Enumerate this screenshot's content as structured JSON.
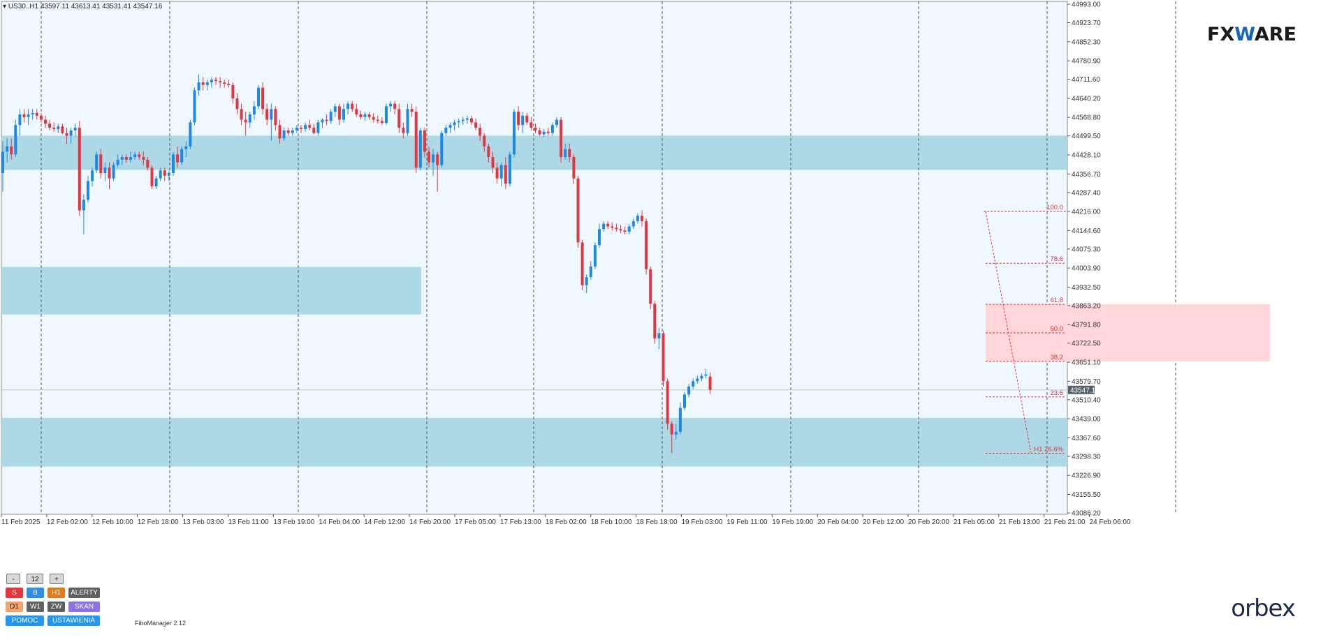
{
  "symbol_bar": {
    "text": "US30..H1  43597.11 43613.41 43531.41 43547.16"
  },
  "logos": {
    "fxmware_prefix": "FX",
    "fxmware_w": "W",
    "fxmware_suffix": "ARE",
    "orbex": "orbex"
  },
  "indicator_label": "FiboManager 2.12",
  "panel": {
    "minus": "-",
    "count": "12",
    "plus": "+",
    "row1": [
      "S",
      "B",
      "H1",
      "ALERTY"
    ],
    "row2": [
      "D1",
      "W1",
      "ZW",
      "SKAN"
    ],
    "row3": [
      "POMOC",
      "USTAWIENIA"
    ]
  },
  "colors": {
    "background": "#f0f8ff",
    "bull": "#1e88e5",
    "bear": "#e8343e",
    "zone": "#add8e6",
    "fib_zone": "#ffd6da",
    "fib_line": "#e8343e",
    "grid": "#555555"
  },
  "chart_data": {
    "type": "candlestick",
    "symbol": "US30",
    "timeframe": "H1",
    "ohlc_last": {
      "open": 43597.11,
      "high": 43613.41,
      "low": 43531.41,
      "close": 43547.16
    },
    "current_price": "43547.16",
    "y_ticks": [
      "44993.00",
      "44923.70",
      "44852.30",
      "44780.90",
      "44711.60",
      "44640.20",
      "44568.80",
      "44499.50",
      "44428.10",
      "44356.70",
      "44287.40",
      "44216.00",
      "44144.60",
      "44075.30",
      "44003.90",
      "43932.50",
      "43863.20",
      "43791.80",
      "43722.50",
      "43651.10",
      "43579.70",
      "43510.40",
      "43439.00",
      "43367.60",
      "43298.30",
      "43226.90",
      "43155.50",
      "43086.20"
    ],
    "y_range": [
      43086.2,
      44993.0
    ],
    "x_ticks": [
      "11 Feb 2025",
      "12 Feb 02:00",
      "12 Feb 10:00",
      "12 Feb 18:00",
      "13 Feb 03:00",
      "13 Feb 11:00",
      "13 Feb 19:00",
      "14 Feb 04:00",
      "14 Feb 12:00",
      "14 Feb 20:00",
      "17 Feb 05:00",
      "17 Feb 13:00",
      "18 Feb 02:00",
      "18 Feb 10:00",
      "18 Feb 18:00",
      "19 Feb 03:00",
      "19 Feb 11:00",
      "19 Feb 19:00",
      "20 Feb 04:00",
      "20 Feb 12:00",
      "20 Feb 20:00",
      "21 Feb 05:00",
      "21 Feb 13:00",
      "21 Feb 21:00",
      "24 Feb 06:00"
    ],
    "fib_levels": [
      {
        "label": "100.0",
        "price": 44216.0
      },
      {
        "label": "78.6",
        "price": 44022.0
      },
      {
        "label": "61.8",
        "price": 43868.0
      },
      {
        "label": "50.0",
        "price": 43761.0
      },
      {
        "label": "38.2",
        "price": 43654.0
      },
      {
        "label": "23.6",
        "price": 43521.0
      },
      {
        "label": "H1 26.6%",
        "price": 43310.0
      }
    ],
    "zones": [
      {
        "from_price": 44372,
        "to_price": 44500,
        "span": "full"
      },
      {
        "from_price": 43830,
        "to_price": 44008,
        "span": "left"
      },
      {
        "from_price": 43260,
        "to_price": 43442,
        "span": "full"
      }
    ],
    "candles": [
      {
        "o": 44360,
        "h": 44480,
        "l": 44290,
        "c": 44440
      },
      {
        "o": 44440,
        "h": 44490,
        "l": 44400,
        "c": 44460
      },
      {
        "o": 44460,
        "h": 44490,
        "l": 44410,
        "c": 44430
      },
      {
        "o": 44430,
        "h": 44560,
        "l": 44420,
        "c": 44540
      },
      {
        "o": 44540,
        "h": 44600,
        "l": 44500,
        "c": 44580
      },
      {
        "o": 44580,
        "h": 44600,
        "l": 44550,
        "c": 44570
      },
      {
        "o": 44570,
        "h": 44600,
        "l": 44540,
        "c": 44580
      },
      {
        "o": 44580,
        "h": 44600,
        "l": 44560,
        "c": 44585
      },
      {
        "o": 44585,
        "h": 44600,
        "l": 44560,
        "c": 44575
      },
      {
        "o": 44575,
        "h": 44585,
        "l": 44550,
        "c": 44560
      },
      {
        "o": 44560,
        "h": 44575,
        "l": 44530,
        "c": 44545
      },
      {
        "o": 44545,
        "h": 44560,
        "l": 44520,
        "c": 44530
      },
      {
        "o": 44530,
        "h": 44550,
        "l": 44515,
        "c": 44525
      },
      {
        "o": 44525,
        "h": 44545,
        "l": 44510,
        "c": 44535
      },
      {
        "o": 44535,
        "h": 44545,
        "l": 44505,
        "c": 44510
      },
      {
        "o": 44510,
        "h": 44530,
        "l": 44470,
        "c": 44500
      },
      {
        "o": 44500,
        "h": 44530,
        "l": 44470,
        "c": 44520
      },
      {
        "o": 44520,
        "h": 44545,
        "l": 44495,
        "c": 44530
      },
      {
        "o": 44530,
        "h": 44555,
        "l": 44200,
        "c": 44220
      },
      {
        "o": 44220,
        "h": 44280,
        "l": 44130,
        "c": 44260
      },
      {
        "o": 44260,
        "h": 44350,
        "l": 44250,
        "c": 44330
      },
      {
        "o": 44330,
        "h": 44380,
        "l": 44310,
        "c": 44370
      },
      {
        "o": 44370,
        "h": 44440,
        "l": 44360,
        "c": 44430
      },
      {
        "o": 44430,
        "h": 44450,
        "l": 44340,
        "c": 44360
      },
      {
        "o": 44360,
        "h": 44400,
        "l": 44330,
        "c": 44380
      },
      {
        "o": 44380,
        "h": 44400,
        "l": 44300,
        "c": 44340
      },
      {
        "o": 44340,
        "h": 44400,
        "l": 44330,
        "c": 44390
      },
      {
        "o": 44390,
        "h": 44430,
        "l": 44380,
        "c": 44410
      },
      {
        "o": 44410,
        "h": 44430,
        "l": 44390,
        "c": 44420
      },
      {
        "o": 44420,
        "h": 44430,
        "l": 44400,
        "c": 44410
      },
      {
        "o": 44410,
        "h": 44440,
        "l": 44400,
        "c": 44420
      },
      {
        "o": 44420,
        "h": 44440,
        "l": 44410,
        "c": 44430
      },
      {
        "o": 44430,
        "h": 44440,
        "l": 44410,
        "c": 44420
      },
      {
        "o": 44420,
        "h": 44440,
        "l": 44390,
        "c": 44410
      },
      {
        "o": 44410,
        "h": 44420,
        "l": 44370,
        "c": 44380
      },
      {
        "o": 44380,
        "h": 44390,
        "l": 44300,
        "c": 44310
      },
      {
        "o": 44310,
        "h": 44350,
        "l": 44300,
        "c": 44340
      },
      {
        "o": 44340,
        "h": 44380,
        "l": 44330,
        "c": 44370
      },
      {
        "o": 44370,
        "h": 44380,
        "l": 44330,
        "c": 44350
      },
      {
        "o": 44350,
        "h": 44370,
        "l": 44330,
        "c": 44360
      },
      {
        "o": 44360,
        "h": 44440,
        "l": 44350,
        "c": 44430
      },
      {
        "o": 44430,
        "h": 44460,
        "l": 44380,
        "c": 44400
      },
      {
        "o": 44400,
        "h": 44460,
        "l": 44390,
        "c": 44450
      },
      {
        "o": 44450,
        "h": 44480,
        "l": 44420,
        "c": 44460
      },
      {
        "o": 44460,
        "h": 44560,
        "l": 44450,
        "c": 44550
      },
      {
        "o": 44550,
        "h": 44680,
        "l": 44540,
        "c": 44670
      },
      {
        "o": 44670,
        "h": 44730,
        "l": 44650,
        "c": 44700
      },
      {
        "o": 44700,
        "h": 44720,
        "l": 44670,
        "c": 44690
      },
      {
        "o": 44690,
        "h": 44710,
        "l": 44670,
        "c": 44700
      },
      {
        "o": 44700,
        "h": 44720,
        "l": 44680,
        "c": 44710
      },
      {
        "o": 44710,
        "h": 44720,
        "l": 44690,
        "c": 44705
      },
      {
        "o": 44705,
        "h": 44720,
        "l": 44680,
        "c": 44700
      },
      {
        "o": 44700,
        "h": 44710,
        "l": 44680,
        "c": 44695
      },
      {
        "o": 44695,
        "h": 44710,
        "l": 44680,
        "c": 44690
      },
      {
        "o": 44690,
        "h": 44700,
        "l": 44620,
        "c": 44640
      },
      {
        "o": 44640,
        "h": 44660,
        "l": 44580,
        "c": 44600
      },
      {
        "o": 44600,
        "h": 44620,
        "l": 44540,
        "c": 44560
      },
      {
        "o": 44560,
        "h": 44590,
        "l": 44500,
        "c": 44550
      },
      {
        "o": 44550,
        "h": 44590,
        "l": 44530,
        "c": 44580
      },
      {
        "o": 44580,
        "h": 44630,
        "l": 44560,
        "c": 44610
      },
      {
        "o": 44610,
        "h": 44690,
        "l": 44600,
        "c": 44680
      },
      {
        "o": 44680,
        "h": 44700,
        "l": 44580,
        "c": 44600
      },
      {
        "o": 44600,
        "h": 44620,
        "l": 44540,
        "c": 44560
      },
      {
        "o": 44560,
        "h": 44620,
        "l": 44480,
        "c": 44600
      },
      {
        "o": 44600,
        "h": 44610,
        "l": 44520,
        "c": 44540
      },
      {
        "o": 44540,
        "h": 44560,
        "l": 44470,
        "c": 44490
      },
      {
        "o": 44490,
        "h": 44530,
        "l": 44480,
        "c": 44520
      },
      {
        "o": 44520,
        "h": 44530,
        "l": 44500,
        "c": 44510
      },
      {
        "o": 44510,
        "h": 44530,
        "l": 44500,
        "c": 44520
      },
      {
        "o": 44520,
        "h": 44540,
        "l": 44510,
        "c": 44530
      },
      {
        "o": 44530,
        "h": 44540,
        "l": 44510,
        "c": 44525
      },
      {
        "o": 44525,
        "h": 44550,
        "l": 44515,
        "c": 44540
      },
      {
        "o": 44540,
        "h": 44560,
        "l": 44520,
        "c": 44530
      },
      {
        "o": 44530,
        "h": 44545,
        "l": 44505,
        "c": 44510
      },
      {
        "o": 44510,
        "h": 44560,
        "l": 44500,
        "c": 44550
      },
      {
        "o": 44550,
        "h": 44565,
        "l": 44530,
        "c": 44560
      },
      {
        "o": 44560,
        "h": 44580,
        "l": 44540,
        "c": 44555
      },
      {
        "o": 44555,
        "h": 44600,
        "l": 44545,
        "c": 44590
      },
      {
        "o": 44590,
        "h": 44620,
        "l": 44570,
        "c": 44610
      },
      {
        "o": 44610,
        "h": 44620,
        "l": 44540,
        "c": 44560
      },
      {
        "o": 44560,
        "h": 44620,
        "l": 44550,
        "c": 44600
      },
      {
        "o": 44600,
        "h": 44630,
        "l": 44580,
        "c": 44620
      },
      {
        "o": 44620,
        "h": 44630,
        "l": 44590,
        "c": 44600
      },
      {
        "o": 44600,
        "h": 44620,
        "l": 44570,
        "c": 44580
      },
      {
        "o": 44580,
        "h": 44595,
        "l": 44560,
        "c": 44570
      },
      {
        "o": 44570,
        "h": 44590,
        "l": 44555,
        "c": 44580
      },
      {
        "o": 44580,
        "h": 44590,
        "l": 44560,
        "c": 44570
      },
      {
        "o": 44570,
        "h": 44585,
        "l": 44550,
        "c": 44560
      },
      {
        "o": 44560,
        "h": 44575,
        "l": 44545,
        "c": 44555
      },
      {
        "o": 44555,
        "h": 44570,
        "l": 44540,
        "c": 44548
      },
      {
        "o": 44548,
        "h": 44620,
        "l": 44540,
        "c": 44610
      },
      {
        "o": 44610,
        "h": 44630,
        "l": 44590,
        "c": 44620
      },
      {
        "o": 44620,
        "h": 44630,
        "l": 44580,
        "c": 44600
      },
      {
        "o": 44600,
        "h": 44620,
        "l": 44510,
        "c": 44530
      },
      {
        "o": 44530,
        "h": 44550,
        "l": 44490,
        "c": 44510
      },
      {
        "o": 44510,
        "h": 44620,
        "l": 44500,
        "c": 44600
      },
      {
        "o": 44600,
        "h": 44620,
        "l": 44570,
        "c": 44590
      },
      {
        "o": 44590,
        "h": 44610,
        "l": 44360,
        "c": 44380
      },
      {
        "o": 44380,
        "h": 44530,
        "l": 44370,
        "c": 44520
      },
      {
        "o": 44520,
        "h": 44530,
        "l": 44420,
        "c": 44440
      },
      {
        "o": 44440,
        "h": 44460,
        "l": 44380,
        "c": 44400
      },
      {
        "o": 44400,
        "h": 44450,
        "l": 44350,
        "c": 44430
      },
      {
        "o": 44430,
        "h": 44440,
        "l": 44290,
        "c": 44390
      },
      {
        "o": 44390,
        "h": 44520,
        "l": 44380,
        "c": 44510
      },
      {
        "o": 44510,
        "h": 44540,
        "l": 44500,
        "c": 44530
      },
      {
        "o": 44530,
        "h": 44550,
        "l": 44510,
        "c": 44540
      },
      {
        "o": 44540,
        "h": 44560,
        "l": 44520,
        "c": 44550
      },
      {
        "o": 44550,
        "h": 44565,
        "l": 44530,
        "c": 44555
      },
      {
        "o": 44555,
        "h": 44570,
        "l": 44540,
        "c": 44560
      },
      {
        "o": 44560,
        "h": 44575,
        "l": 44545,
        "c": 44565
      },
      {
        "o": 44565,
        "h": 44575,
        "l": 44540,
        "c": 44550
      },
      {
        "o": 44550,
        "h": 44565,
        "l": 44520,
        "c": 44530
      },
      {
        "o": 44530,
        "h": 44545,
        "l": 44480,
        "c": 44500
      },
      {
        "o": 44500,
        "h": 44510,
        "l": 44440,
        "c": 44460
      },
      {
        "o": 44460,
        "h": 44470,
        "l": 44400,
        "c": 44420
      },
      {
        "o": 44420,
        "h": 44440,
        "l": 44360,
        "c": 44380
      },
      {
        "o": 44380,
        "h": 44400,
        "l": 44320,
        "c": 44340
      },
      {
        "o": 44340,
        "h": 44400,
        "l": 44310,
        "c": 44390
      },
      {
        "o": 44390,
        "h": 44420,
        "l": 44300,
        "c": 44320
      },
      {
        "o": 44320,
        "h": 44440,
        "l": 44310,
        "c": 44430
      },
      {
        "o": 44430,
        "h": 44600,
        "l": 44420,
        "c": 44590
      },
      {
        "o": 44590,
        "h": 44610,
        "l": 44520,
        "c": 44540
      },
      {
        "o": 44540,
        "h": 44590,
        "l": 44510,
        "c": 44575
      },
      {
        "o": 44575,
        "h": 44585,
        "l": 44540,
        "c": 44550
      },
      {
        "o": 44550,
        "h": 44570,
        "l": 44520,
        "c": 44530
      },
      {
        "o": 44530,
        "h": 44545,
        "l": 44510,
        "c": 44520
      },
      {
        "o": 44520,
        "h": 44530,
        "l": 44500,
        "c": 44505
      },
      {
        "o": 44505,
        "h": 44525,
        "l": 44495,
        "c": 44515
      },
      {
        "o": 44515,
        "h": 44530,
        "l": 44500,
        "c": 44510
      },
      {
        "o": 44510,
        "h": 44550,
        "l": 44500,
        "c": 44540
      },
      {
        "o": 44540,
        "h": 44570,
        "l": 44530,
        "c": 44560
      },
      {
        "o": 44560,
        "h": 44570,
        "l": 44400,
        "c": 44420
      },
      {
        "o": 44420,
        "h": 44470,
        "l": 44410,
        "c": 44450
      },
      {
        "o": 44450,
        "h": 44470,
        "l": 44400,
        "c": 44420
      },
      {
        "o": 44420,
        "h": 44430,
        "l": 44320,
        "c": 44340
      },
      {
        "o": 44340,
        "h": 44350,
        "l": 44080,
        "c": 44100
      },
      {
        "o": 44100,
        "h": 44110,
        "l": 43920,
        "c": 43940
      },
      {
        "o": 43940,
        "h": 43980,
        "l": 43910,
        "c": 43970
      },
      {
        "o": 43970,
        "h": 44030,
        "l": 43960,
        "c": 44010
      },
      {
        "o": 44010,
        "h": 44100,
        "l": 44000,
        "c": 44090
      },
      {
        "o": 44090,
        "h": 44170,
        "l": 44080,
        "c": 44150
      },
      {
        "o": 44150,
        "h": 44180,
        "l": 44140,
        "c": 44170
      },
      {
        "o": 44170,
        "h": 44180,
        "l": 44150,
        "c": 44160
      },
      {
        "o": 44160,
        "h": 44175,
        "l": 44145,
        "c": 44155
      },
      {
        "o": 44155,
        "h": 44170,
        "l": 44140,
        "c": 44150
      },
      {
        "o": 44150,
        "h": 44165,
        "l": 44135,
        "c": 44145
      },
      {
        "o": 44145,
        "h": 44160,
        "l": 44130,
        "c": 44140
      },
      {
        "o": 44140,
        "h": 44170,
        "l": 44130,
        "c": 44160
      },
      {
        "o": 44160,
        "h": 44190,
        "l": 44150,
        "c": 44180
      },
      {
        "o": 44180,
        "h": 44210,
        "l": 44170,
        "c": 44200
      },
      {
        "o": 44200,
        "h": 44220,
        "l": 44160,
        "c": 44180
      },
      {
        "o": 44180,
        "h": 44190,
        "l": 43980,
        "c": 44000
      },
      {
        "o": 44000,
        "h": 44010,
        "l": 43850,
        "c": 43870
      },
      {
        "o": 43870,
        "h": 43880,
        "l": 43720,
        "c": 43740
      },
      {
        "o": 43740,
        "h": 43780,
        "l": 43700,
        "c": 43760
      },
      {
        "o": 43760,
        "h": 43770,
        "l": 43560,
        "c": 43580
      },
      {
        "o": 43580,
        "h": 43590,
        "l": 43400,
        "c": 43420
      },
      {
        "o": 43420,
        "h": 43430,
        "l": 43310,
        "c": 43380
      },
      {
        "o": 43380,
        "h": 43420,
        "l": 43360,
        "c": 43390
      },
      {
        "o": 43390,
        "h": 43500,
        "l": 43380,
        "c": 43480
      },
      {
        "o": 43480,
        "h": 43540,
        "l": 43470,
        "c": 43530
      },
      {
        "o": 43530,
        "h": 43570,
        "l": 43520,
        "c": 43560
      },
      {
        "o": 43560,
        "h": 43590,
        "l": 43550,
        "c": 43580
      },
      {
        "o": 43580,
        "h": 43600,
        "l": 43570,
        "c": 43590
      },
      {
        "o": 43590,
        "h": 43610,
        "l": 43580,
        "c": 43600
      },
      {
        "o": 43600,
        "h": 43625,
        "l": 43590,
        "c": 43605
      },
      {
        "o": 43597.11,
        "h": 43613.41,
        "l": 43531.41,
        "c": 43547.16
      }
    ]
  }
}
